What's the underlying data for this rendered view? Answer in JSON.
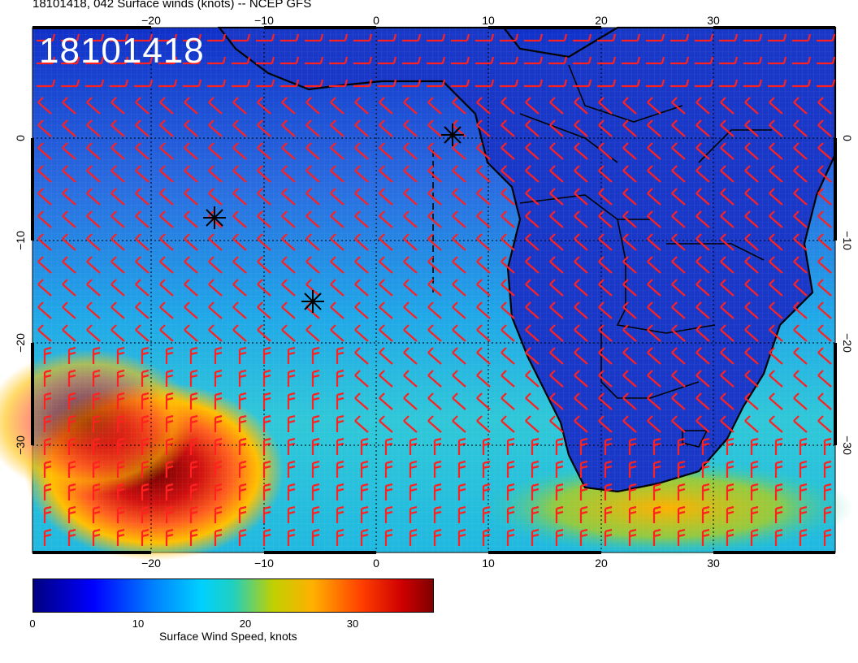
{
  "title": "18101418, 042 Surface winds (knots) -- NCEP GFS",
  "stamp": "18101418",
  "axes": {
    "lon_ticks": [
      "−20",
      "−10",
      "0",
      "10",
      "20",
      "30"
    ],
    "lat_ticks": [
      "0",
      "−10",
      "−20",
      "−30"
    ]
  },
  "colorbar": {
    "ticks": [
      "0",
      "10",
      "20",
      "30"
    ],
    "label": "Surface Wind Speed, knots",
    "colors": [
      "#000080",
      "#0000ff",
      "#0080ff",
      "#00d0ff",
      "#c0d000",
      "#ffb000",
      "#ff4000",
      "#800000"
    ]
  },
  "map": {
    "ocean_color": "#2a60d8",
    "land_color": "#1a30c0",
    "jet_color": "#c01010",
    "barb_color": "#ff2020",
    "coast_color": "#000000"
  }
}
